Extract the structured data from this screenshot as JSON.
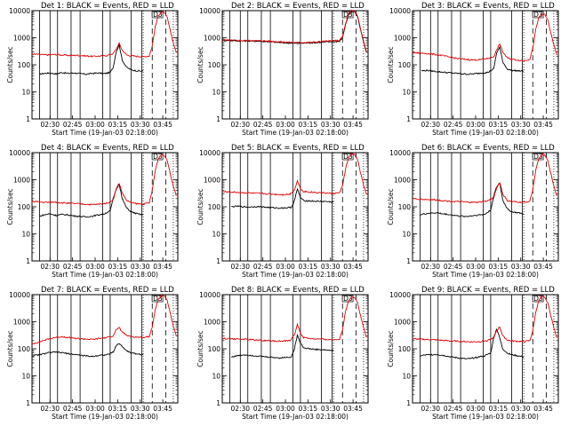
{
  "colors": {
    "events": "#000000",
    "lld": "#e00000",
    "background": "#ffffff"
  },
  "chart_data": {
    "type": "line",
    "layout": "3x3 grid of detector panels",
    "xlabel": "Start Time (19-Jan-03 02:18:00)",
    "ylabel": "Counts/sec",
    "yscale": "log",
    "ylim": [
      1,
      10000
    ],
    "ytick_labels": [
      "1",
      "10",
      "100",
      "1000",
      "10000"
    ],
    "xlim_minutes_after_0218": [
      0,
      97
    ],
    "xtick_labels": [
      "02:30",
      "02:45",
      "03:00",
      "03:15",
      "03:30",
      "03:45"
    ],
    "xtick_minutes": [
      12,
      27,
      42,
      57,
      72,
      87
    ],
    "legend_note": "BLACK = Events, RED = LLD",
    "panel_marker": "D3",
    "solid_vlines_minutes": [
      5,
      12,
      17,
      26,
      32,
      47,
      52,
      66,
      73
    ],
    "dotted_vlines_minutes": [
      74,
      94
    ],
    "dashed_vlines_minutes": [
      80,
      89
    ],
    "panels": [
      {
        "title": "Det 1: BLACK = Events, RED = LLD",
        "series": [
          {
            "name": "Events",
            "x": [
              5,
              8,
              12,
              16,
              20,
              24,
              28,
              32,
              36,
              40,
              44,
              48,
              52,
              54,
              56,
              58,
              60,
              63,
              66,
              70,
              74
            ],
            "y": [
              45,
              48,
              50,
              46,
              52,
              48,
              50,
              47,
              45,
              48,
              50,
              47,
              52,
              80,
              300,
              550,
              150,
              80,
              65,
              60,
              58
            ]
          },
          {
            "name": "LLD",
            "x": [
              0,
              5,
              10,
              15,
              20,
              25,
              30,
              35,
              40,
              45,
              50,
              54,
              56,
              58,
              60,
              63,
              66,
              70,
              74,
              78,
              80,
              82,
              84,
              86,
              88,
              90,
              92,
              94,
              96
            ],
            "y": [
              250,
              240,
              230,
              240,
              230,
              220,
              225,
              215,
              205,
              210,
              220,
              260,
              380,
              620,
              350,
              230,
              215,
              205,
              200,
              210,
              500,
              2500,
              6500,
              9000,
              8500,
              5500,
              1800,
              650,
              280
            ]
          }
        ]
      },
      {
        "title": "Det 2: BLACK = Events, RED = LLD",
        "series": [
          {
            "name": "Events",
            "x": [
              0,
              10,
              20,
              30,
              40,
              50,
              60,
              70,
              75,
              78,
              80,
              82,
              84,
              86,
              88,
              90,
              92,
              94,
              96
            ],
            "y": [
              800,
              770,
              750,
              720,
              650,
              620,
              650,
              700,
              720,
              730,
              1000,
              3000,
              7000,
              9500,
              9000,
              6000,
              2000,
              700,
              280
            ]
          },
          {
            "name": "LLD",
            "x": [
              0,
              10,
              20,
              30,
              40,
              50,
              60,
              70,
              75,
              78,
              80,
              82,
              84,
              86,
              88,
              90,
              92,
              94,
              96
            ],
            "y": [
              820,
              790,
              780,
              760,
              700,
              660,
              680,
              750,
              780,
              800,
              1100,
              3200,
              7500,
              10000,
              9500,
              6500,
              2100,
              750,
              300
            ]
          }
        ]
      },
      {
        "title": "Det 3: BLACK = Events, RED = LLD",
        "series": [
          {
            "name": "Events",
            "x": [
              6,
              10,
              14,
              18,
              22,
              26,
              30,
              34,
              38,
              42,
              46,
              50,
              54,
              56,
              58,
              60,
              63,
              66,
              70,
              74
            ],
            "y": [
              60,
              62,
              58,
              55,
              52,
              50,
              48,
              46,
              45,
              47,
              50,
              52,
              70,
              280,
              450,
              130,
              70,
              62,
              60,
              58
            ]
          },
          {
            "name": "LLD",
            "x": [
              0,
              5,
              10,
              15,
              20,
              25,
              30,
              35,
              40,
              45,
              50,
              54,
              56,
              58,
              60,
              63,
              66,
              70,
              74,
              78,
              80,
              82,
              84,
              86,
              88,
              90,
              92,
              94,
              96
            ],
            "y": [
              280,
              270,
              260,
              240,
              220,
              190,
              170,
              160,
              150,
              155,
              170,
              200,
              350,
              600,
              300,
              180,
              160,
              150,
              140,
              160,
              400,
              2000,
              5500,
              7500,
              7000,
              4500,
              1500,
              550,
              230
            ]
          }
        ]
      },
      {
        "title": "Det 4: BLACK = Events, RED = LLD",
        "series": [
          {
            "name": "Events",
            "x": [
              5,
              8,
              12,
              16,
              20,
              24,
              28,
              32,
              36,
              40,
              44,
              48,
              52,
              54,
              56,
              58,
              60,
              63,
              66,
              70,
              74
            ],
            "y": [
              45,
              50,
              55,
              48,
              52,
              50,
              46,
              44,
              42,
              45,
              50,
              55,
              70,
              200,
              450,
              700,
              200,
              90,
              65,
              55,
              50
            ]
          },
          {
            "name": "LLD",
            "x": [
              0,
              5,
              10,
              15,
              20,
              25,
              30,
              35,
              40,
              45,
              50,
              54,
              56,
              58,
              60,
              63,
              66,
              70,
              74,
              78,
              80,
              82,
              84,
              86,
              88,
              90,
              92,
              94,
              96
            ],
            "y": [
              160,
              150,
              145,
              150,
              140,
              135,
              130,
              125,
              120,
              125,
              135,
              180,
              450,
              750,
              330,
              170,
              140,
              130,
              125,
              140,
              400,
              2200,
              6000,
              8500,
              8000,
              5000,
              1700,
              600,
              250
            ]
          }
        ]
      },
      {
        "title": "Det 5: BLACK = Events, RED = LLD",
        "series": [
          {
            "name": "Events",
            "x": [
              6,
              10,
              14,
              18,
              22,
              26,
              30,
              34,
              38,
              42,
              46,
              48,
              50,
              52,
              54,
              58,
              62,
              66,
              70,
              74
            ],
            "y": [
              100,
              105,
              100,
              98,
              102,
              100,
              95,
              92,
              90,
              92,
              95,
              170,
              450,
              220,
              170,
              165,
              160,
              158,
              155,
              150
            ]
          },
          {
            "name": "LLD",
            "x": [
              0,
              5,
              10,
              15,
              20,
              25,
              30,
              35,
              40,
              45,
              48,
              50,
              52,
              54,
              58,
              62,
              66,
              70,
              74,
              78,
              80,
              82,
              84,
              86,
              88,
              90,
              92,
              94,
              96
            ],
            "y": [
              360,
              350,
              340,
              330,
              320,
              310,
              300,
              290,
              280,
              290,
              420,
              900,
              480,
              370,
              350,
              340,
              330,
              320,
              310,
              330,
              600,
              2500,
              6500,
              9000,
              8500,
              5500,
              1800,
              650,
              280
            ]
          }
        ]
      },
      {
        "title": "Det 6: BLACK = Events, RED = LLD",
        "series": [
          {
            "name": "Events",
            "x": [
              5,
              8,
              12,
              16,
              20,
              24,
              28,
              32,
              36,
              40,
              44,
              48,
              52,
              54,
              56,
              58,
              60,
              63,
              66,
              70,
              74
            ],
            "y": [
              50,
              55,
              58,
              60,
              55,
              52,
              48,
              45,
              44,
              47,
              50,
              52,
              75,
              250,
              550,
              750,
              180,
              85,
              65,
              60,
              55
            ]
          },
          {
            "name": "LLD",
            "x": [
              0,
              5,
              10,
              15,
              20,
              25,
              30,
              35,
              40,
              45,
              50,
              54,
              56,
              58,
              60,
              63,
              66,
              70,
              74,
              78,
              80,
              82,
              84,
              86,
              88,
              90,
              92,
              94,
              96
            ],
            "y": [
              200,
              190,
              185,
              180,
              170,
              160,
              155,
              150,
              145,
              150,
              165,
              220,
              500,
              800,
              300,
              170,
              155,
              150,
              145,
              160,
              420,
              2200,
              6000,
              8500,
              8000,
              5000,
              1700,
              600,
              250
            ]
          }
        ]
      },
      {
        "title": "Det 7: BLACK = Events, RED = LLD",
        "series": [
          {
            "name": "Events",
            "x": [
              0,
              5,
              10,
              15,
              20,
              25,
              30,
              35,
              40,
              45,
              50,
              54,
              56,
              58,
              60,
              63,
              66,
              70,
              74
            ],
            "y": [
              55,
              60,
              70,
              75,
              72,
              65,
              60,
              55,
              52,
              58,
              60,
              75,
              130,
              160,
              120,
              85,
              70,
              65,
              60
            ]
          },
          {
            "name": "LLD",
            "x": [
              0,
              5,
              10,
              15,
              20,
              25,
              30,
              35,
              40,
              45,
              50,
              54,
              56,
              58,
              60,
              63,
              66,
              70,
              74,
              78,
              80,
              82,
              84,
              86,
              88,
              90,
              92,
              94,
              96
            ],
            "y": [
              150,
              180,
              220,
              260,
              280,
              260,
              240,
              230,
              220,
              240,
              260,
              300,
              500,
              600,
              420,
              310,
              280,
              270,
              260,
              290,
              650,
              2800,
              7000,
              9500,
              9000,
              6000,
              2000,
              700,
              300
            ]
          }
        ]
      },
      {
        "title": "Det 8: BLACK = Events, RED = LLD",
        "series": [
          {
            "name": "Events",
            "x": [
              6,
              10,
              14,
              18,
              22,
              26,
              30,
              34,
              38,
              42,
              46,
              48,
              50,
              52,
              54,
              58,
              62,
              66,
              70,
              74
            ],
            "y": [
              50,
              55,
              60,
              58,
              55,
              52,
              50,
              48,
              46,
              48,
              50,
              100,
              320,
              170,
              110,
              100,
              95,
              92,
              90,
              85
            ]
          },
          {
            "name": "LLD",
            "x": [
              0,
              5,
              10,
              15,
              20,
              25,
              30,
              35,
              40,
              45,
              48,
              50,
              52,
              54,
              58,
              62,
              66,
              70,
              74,
              78,
              80,
              82,
              84,
              86,
              88,
              90,
              92,
              94,
              96
            ],
            "y": [
              240,
              235,
              230,
              225,
              215,
              205,
              200,
              195,
              190,
              200,
              330,
              800,
              380,
              260,
              240,
              230,
              225,
              220,
              215,
              230,
              500,
              2400,
              6000,
              8200,
              7800,
              5000,
              1700,
              600,
              260
            ]
          }
        ]
      },
      {
        "title": "Det 9: BLACK = Events, RED = LLD",
        "series": [
          {
            "name": "Events",
            "x": [
              5,
              8,
              12,
              16,
              20,
              24,
              28,
              32,
              36,
              40,
              44,
              48,
              52,
              54,
              56,
              58,
              60,
              63,
              66,
              70,
              74
            ],
            "y": [
              55,
              58,
              60,
              62,
              58,
              52,
              48,
              45,
              42,
              45,
              50,
              55,
              70,
              250,
              550,
              250,
              100,
              70,
              60,
              55,
              50
            ]
          },
          {
            "name": "LLD",
            "x": [
              0,
              5,
              10,
              15,
              20,
              25,
              30,
              35,
              40,
              45,
              50,
              54,
              56,
              58,
              60,
              63,
              66,
              70,
              74,
              78,
              80,
              82,
              84,
              86,
              88,
              90,
              92,
              94,
              96
            ],
            "y": [
              230,
              225,
              220,
              215,
              205,
              195,
              190,
              185,
              180,
              185,
              200,
              260,
              480,
              650,
              300,
              210,
              195,
              190,
              185,
              200,
              450,
              2300,
              6000,
              8500,
              8000,
              5000,
              1700,
              600,
              250
            ]
          }
        ]
      }
    ]
  }
}
